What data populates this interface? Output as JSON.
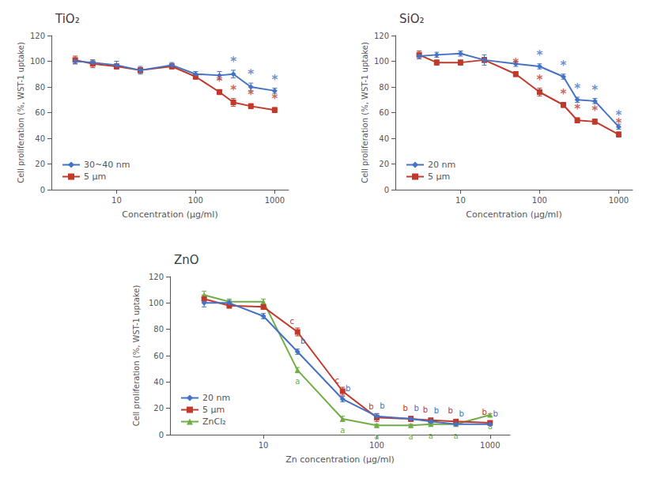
{
  "chart_data": [
    {
      "type": "line",
      "title": "TiO₂",
      "x_label": "Concentration (μg/ml)",
      "y_label": "Cell proliferation (%, WST-1 uptake)",
      "log": "x",
      "xlim": [
        1.5,
        1500
      ],
      "xticks": [
        10,
        100,
        1000
      ],
      "ylim": [
        0,
        120
      ],
      "yticks": [
        0,
        20,
        40,
        60,
        80,
        100,
        120
      ],
      "grid": false,
      "legend": "lower left",
      "x": [
        3,
        5,
        10,
        20,
        50,
        100,
        200,
        300,
        500,
        1000
      ],
      "series": [
        {
          "name": "30~40 nm",
          "color": "#4472C4",
          "marker": "diamond",
          "values": [
            100,
            99,
            97,
            93,
            97,
            90,
            89,
            90,
            80,
            77
          ],
          "errors": [
            2,
            2,
            3,
            3,
            2,
            2,
            3,
            3,
            3,
            2
          ]
        },
        {
          "name": "5 μm",
          "color": "#C0392B",
          "marker": "square",
          "values": [
            101,
            98,
            96,
            93,
            96,
            88,
            76,
            68,
            65,
            62
          ],
          "errors": [
            3,
            3,
            2,
            2,
            2,
            2,
            2,
            3,
            2,
            2
          ]
        }
      ],
      "annotations": [
        {
          "text": "*",
          "x": 300,
          "y": 95,
          "color": "#4472C4"
        },
        {
          "text": "*",
          "x": 500,
          "y": 85,
          "color": "#4472C4"
        },
        {
          "text": "*",
          "x": 1000,
          "y": 81,
          "color": "#4472C4"
        },
        {
          "text": "*",
          "x": 200,
          "y": 80,
          "color": "#C0392B"
        },
        {
          "text": "*",
          "x": 300,
          "y": 73,
          "color": "#C0392B"
        },
        {
          "text": "*",
          "x": 500,
          "y": 69,
          "color": "#C0392B"
        },
        {
          "text": "*",
          "x": 1000,
          "y": 66,
          "color": "#C0392B"
        }
      ]
    },
    {
      "type": "line",
      "title": "SiO₂",
      "x_label": "Concentration (μg/ml)",
      "y_label": "Cell proliferation (%, WST-1 uptake)",
      "log": "x",
      "xlim": [
        1.5,
        1500
      ],
      "xticks": [
        10,
        100,
        1000
      ],
      "ylim": [
        0,
        120
      ],
      "yticks": [
        0,
        20,
        40,
        60,
        80,
        100,
        120
      ],
      "grid": false,
      "legend": "lower left",
      "x": [
        3,
        5,
        10,
        20,
        50,
        100,
        200,
        300,
        500,
        1000
      ],
      "series": [
        {
          "name": "20 nm",
          "color": "#4472C4",
          "marker": "diamond",
          "values": [
            104,
            105,
            106,
            101,
            98,
            96,
            88,
            70,
            69,
            49
          ],
          "errors": [
            2,
            2,
            2,
            4,
            2,
            2,
            2,
            2,
            2,
            2
          ]
        },
        {
          "name": "5 μm",
          "color": "#C0392B",
          "marker": "square",
          "values": [
            105,
            99,
            99,
            101,
            90,
            76,
            66,
            54,
            53,
            43
          ],
          "errors": [
            3,
            2,
            2,
            2,
            2,
            3,
            2,
            2,
            2,
            2
          ]
        }
      ],
      "annotations": [
        {
          "text": "*",
          "x": 100,
          "y": 100,
          "color": "#4472C4"
        },
        {
          "text": "*",
          "x": 200,
          "y": 92,
          "color": "#4472C4"
        },
        {
          "text": "*",
          "x": 300,
          "y": 74,
          "color": "#4472C4"
        },
        {
          "text": "*",
          "x": 500,
          "y": 73,
          "color": "#4472C4"
        },
        {
          "text": "*",
          "x": 1000,
          "y": 53,
          "color": "#4472C4"
        },
        {
          "text": "*",
          "x": 50,
          "y": 94,
          "color": "#C0392B"
        },
        {
          "text": "*",
          "x": 100,
          "y": 81,
          "color": "#C0392B"
        },
        {
          "text": "*",
          "x": 200,
          "y": 70,
          "color": "#C0392B"
        },
        {
          "text": "*",
          "x": 300,
          "y": 58,
          "color": "#C0392B"
        },
        {
          "text": "*",
          "x": 500,
          "y": 57,
          "color": "#C0392B"
        },
        {
          "text": "*",
          "x": 1000,
          "y": 47,
          "color": "#C0392B"
        }
      ]
    },
    {
      "type": "line",
      "title": "ZnO",
      "x_label": "Zn concentration (μg/ml)",
      "y_label": "Cell proliferation (%, WST-1 uptake)",
      "log": "x",
      "xlim": [
        1.5,
        1500
      ],
      "xticks": [
        10,
        100,
        1000
      ],
      "ylim": [
        0,
        120
      ],
      "yticks": [
        0,
        20,
        40,
        60,
        80,
        100,
        120
      ],
      "grid": false,
      "legend": "lower left",
      "x": [
        3,
        5,
        10,
        20,
        50,
        100,
        200,
        300,
        500,
        1000
      ],
      "series": [
        {
          "name": "20 nm",
          "color": "#4472C4",
          "marker": "diamond",
          "values": [
            100,
            100,
            90,
            63,
            27,
            14,
            12,
            10,
            8,
            8
          ],
          "errors": [
            3,
            2,
            2,
            2,
            2,
            2,
            1,
            1,
            1,
            1
          ],
          "point_labels": [
            null,
            null,
            null,
            "b",
            "b",
            "b",
            "b",
            "b",
            "b",
            "b"
          ]
        },
        {
          "name": "5 μm",
          "color": "#C0392B",
          "marker": "square",
          "values": [
            103,
            98,
            97,
            78,
            33,
            13,
            12,
            11,
            10,
            9
          ],
          "errors": [
            3,
            2,
            2,
            3,
            3,
            3,
            2,
            1,
            1,
            1
          ],
          "point_labels": [
            null,
            null,
            null,
            "c",
            "c",
            "b",
            "b",
            "b",
            "b",
            "b"
          ]
        },
        {
          "name": "ZnCl₂",
          "color": "#70AD47",
          "marker": "triangle",
          "values": [
            106,
            101,
            101,
            49,
            12,
            7,
            7,
            8,
            8,
            15
          ],
          "errors": [
            3,
            2,
            2,
            2,
            2,
            1,
            1,
            1,
            1,
            1
          ],
          "point_labels": [
            null,
            null,
            null,
            "a",
            "a",
            "a",
            "a",
            "a",
            "a",
            "a"
          ]
        }
      ]
    }
  ]
}
